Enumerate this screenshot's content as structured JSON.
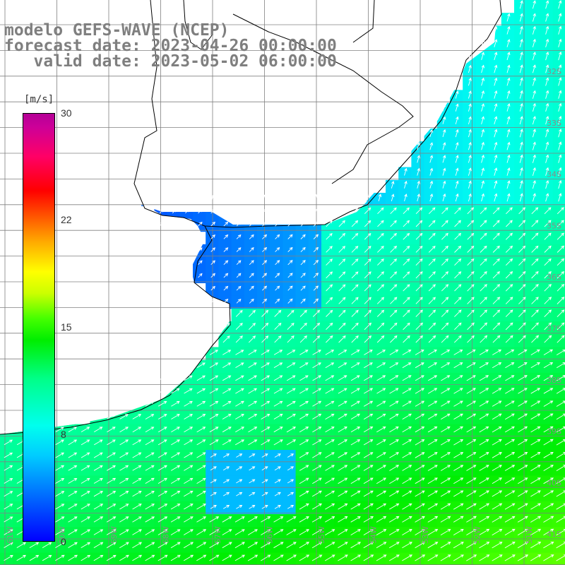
{
  "title": {
    "line1": "modelo GEFS-WAVE (NCEP)",
    "line2": "forecast date: 2023-04-26 00:00:00",
    "line3": "   valid date: 2023-05-02 06:00:00"
  },
  "colorbar": {
    "unit": "[m/s]",
    "ticks": [
      "30",
      "22",
      "15",
      "8",
      "0"
    ],
    "range": [
      0,
      30
    ]
  },
  "map": {
    "lat_labels": [
      "32S",
      "33S",
      "34S",
      "35S",
      "36S",
      "37S",
      "38S",
      "39S",
      "40S",
      "41S"
    ],
    "lon_labels": [
      "61W",
      "60W",
      "59W",
      "58W",
      "57W",
      "56W",
      "55W",
      "54W",
      "53W",
      "52W",
      "51W"
    ],
    "variable": "wind speed and direction",
    "colors": {
      "low": "#0000ff",
      "mid": "#00ffee",
      "high": "#00ee00",
      "grid": "#808080",
      "coast": "#000000"
    }
  }
}
